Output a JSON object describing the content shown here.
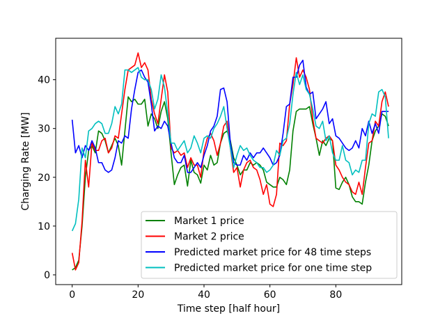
{
  "chart_data": {
    "type": "line",
    "xlabel": "Time step [half hour]",
    "ylabel": "Charging Rate [MW]",
    "xlim": [
      -5,
      100
    ],
    "ylim": [
      -2,
      48.5
    ],
    "xticks": [
      0,
      20,
      40,
      60,
      80
    ],
    "yticks": [
      0,
      10,
      20,
      30,
      40
    ],
    "legend_position": "lower-right",
    "series": [
      {
        "name": "Market 1 price",
        "color": "#008000",
        "values": [
          1.0,
          1.5,
          3.0,
          10.0,
          20.0,
          25.5,
          26.5,
          25.0,
          29.5,
          29.0,
          27.5,
          25.0,
          26.5,
          28.0,
          26.5,
          22.5,
          29.5,
          36.5,
          35.5,
          36.0,
          35.0,
          35.0,
          36.0,
          30.5,
          33.0,
          32.0,
          30.0,
          33.5,
          35.5,
          32.0,
          25.0,
          18.5,
          20.5,
          22.0,
          22.5,
          18.2,
          23.5,
          21.0,
          20.5,
          18.8,
          22.5,
          21.5,
          24.5,
          22.5,
          23.0,
          27.0,
          29.0,
          29.5,
          27.5,
          24.0,
          22.5,
          20.5,
          21.5,
          21.5,
          23.0,
          22.5,
          23.0,
          22.5,
          21.5,
          19.0,
          18.5,
          18.0,
          18.0,
          20.0,
          19.5,
          18.5,
          21.5,
          29.5,
          33.5,
          34.0,
          34.0,
          34.0,
          34.5,
          31.0,
          28.0,
          24.5,
          27.5,
          26.5,
          28.0,
          27.5,
          17.8,
          17.5,
          19.0,
          20.0,
          18.5,
          16.0,
          15.0,
          15.0,
          14.5,
          19.0,
          22.5,
          27.5,
          29.5,
          30.5,
          33.0,
          32.5,
          30.5
        ]
      },
      {
        "name": "Market 2 price",
        "color": "#ff0000",
        "values": [
          4.5,
          1.0,
          2.5,
          11.0,
          23.5,
          18.0,
          27.0,
          25.5,
          25.5,
          27.5,
          28.0,
          25.0,
          26.0,
          28.5,
          28.0,
          33.0,
          38.0,
          42.0,
          42.5,
          43.0,
          45.5,
          42.5,
          43.5,
          42.0,
          36.0,
          33.0,
          31.0,
          36.0,
          41.0,
          37.5,
          26.0,
          25.0,
          25.5,
          24.5,
          25.0,
          22.0,
          24.0,
          22.5,
          22.5,
          20.0,
          25.5,
          28.0,
          29.0,
          27.5,
          24.5,
          27.0,
          30.5,
          31.5,
          26.0,
          21.0,
          22.0,
          18.0,
          21.5,
          23.0,
          23.5,
          22.0,
          21.5,
          19.5,
          16.5,
          18.5,
          14.5,
          14.0,
          16.5,
          27.0,
          26.5,
          27.5,
          35.0,
          39.0,
          44.5,
          40.5,
          42.0,
          40.5,
          38.0,
          32.0,
          28.0,
          27.5,
          27.0,
          28.0,
          28.5,
          27.5,
          22.5,
          21.5,
          20.0,
          19.0,
          18.5,
          17.0,
          16.5,
          19.0,
          16.5,
          22.0,
          27.0,
          27.5,
          31.5,
          30.5,
          35.5,
          37.5,
          34.5
        ]
      },
      {
        "name": "Predicted market price for 48 time steps",
        "color": "#0000ff",
        "values": [
          31.8,
          25.0,
          26.5,
          24.0,
          26.5,
          25.5,
          27.5,
          26.0,
          23.0,
          23.0,
          21.5,
          21.0,
          21.5,
          24.0,
          27.5,
          27.0,
          28.5,
          28.0,
          34.0,
          38.0,
          41.5,
          42.0,
          40.5,
          39.5,
          35.0,
          29.5,
          30.5,
          30.0,
          31.5,
          30.5,
          27.0,
          24.0,
          23.0,
          23.0,
          24.5,
          21.0,
          21.0,
          22.0,
          23.0,
          22.0,
          24.5,
          26.5,
          29.5,
          30.5,
          32.5,
          38.0,
          38.3,
          35.5,
          27.0,
          23.0,
          22.5,
          22.5,
          24.5,
          23.5,
          25.0,
          24.0,
          25.0,
          25.0,
          26.0,
          25.0,
          24.0,
          22.5,
          23.0,
          24.5,
          29.0,
          34.5,
          35.0,
          40.5,
          40.5,
          43.0,
          44.0,
          38.5,
          37.0,
          37.5,
          32.0,
          33.0,
          34.0,
          35.5,
          31.0,
          32.0,
          28.5,
          28.0,
          27.0,
          26.0,
          25.5,
          26.0,
          27.5,
          26.0,
          30.0,
          28.5,
          31.5,
          29.0,
          31.0,
          29.0,
          33.5,
          33.5,
          33.5
        ]
      },
      {
        "name": "Predicted market price for one time step",
        "color": "#00bfbf",
        "values": [
          9.0,
          10.5,
          15.5,
          26.0,
          24.0,
          29.5,
          30.0,
          31.0,
          31.5,
          31.0,
          29.0,
          29.0,
          31.0,
          34.5,
          33.0,
          35.0,
          42.0,
          42.0,
          41.5,
          42.0,
          42.5,
          40.5,
          40.0,
          40.0,
          38.0,
          34.0,
          36.0,
          41.0,
          38.5,
          33.0,
          27.0,
          27.0,
          25.5,
          26.5,
          27.5,
          25.0,
          26.0,
          28.5,
          27.0,
          25.0,
          28.0,
          28.5,
          28.0,
          30.0,
          31.0,
          32.5,
          34.5,
          30.0,
          26.0,
          22.0,
          24.5,
          26.5,
          25.5,
          26.0,
          24.5,
          23.5,
          23.0,
          22.0,
          22.0,
          21.0,
          21.5,
          22.5,
          25.5,
          24.5,
          27.5,
          28.0,
          31.0,
          37.0,
          41.5,
          39.0,
          41.0,
          38.0,
          37.0,
          34.0,
          30.5,
          30.0,
          31.5,
          27.5,
          28.5,
          25.0,
          23.5,
          23.5,
          26.5,
          23.5,
          23.0,
          20.5,
          21.5,
          21.0,
          23.5,
          23.5,
          31.0,
          33.0,
          32.5,
          37.5,
          38.0,
          36.5,
          28.0
        ]
      }
    ]
  }
}
